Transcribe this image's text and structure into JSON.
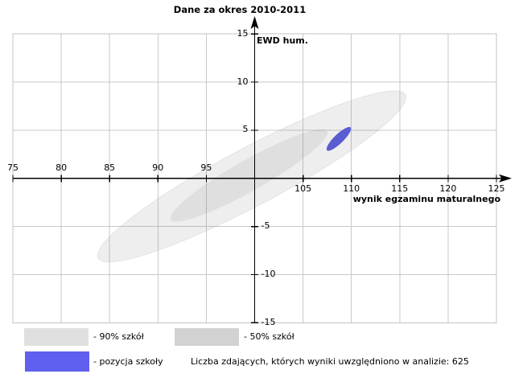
{
  "title": "Dane za okres 2010-2011",
  "footer_note": "Liczba zdających, których wyniki uwzględniono w analizie: 625",
  "legend": {
    "items": [
      {
        "id": "pct90",
        "label": "- 90% szkół",
        "swatch_color": "#e0e0e0"
      },
      {
        "id": "pct50",
        "label": "- 50% szkół",
        "swatch_color": "#d2d2d2"
      },
      {
        "id": "school",
        "label": "- pozycja szkoły",
        "swatch_color": "#5f5ff0"
      }
    ]
  },
  "colors": {
    "grid": "#c9c9c9",
    "plot_border": "#c3c3c3",
    "axis": "#000000",
    "school_ellipse": "#5b5bd2"
  },
  "chart_data": {
    "type": "scatter",
    "title": "Dane za okres 2010-2011",
    "xlabel": "wynik egzaminu maturalnego",
    "ylabel": "EWD hum.",
    "xlim": [
      75,
      125
    ],
    "ylim": [
      -15,
      15
    ],
    "grid": true,
    "grid_step": 5,
    "x_ticks_above_axis": [
      75,
      80,
      85,
      90,
      95
    ],
    "x_ticks_below_axis": [
      105,
      110,
      115,
      120,
      125
    ],
    "y_ticks_left_of_axis": [
      15,
      10,
      5
    ],
    "y_ticks_right_of_axis": [
      -5,
      -10,
      -15
    ],
    "ellipses": [
      {
        "name": "90% szkół",
        "cx": 99.7,
        "cy": 0.2,
        "semi_major": 18.0,
        "semi_minor": 3.0,
        "angle_deg": 28,
        "fill": "rgba(120,120,120,0.13)",
        "stroke": "rgba(110,110,110,0.12)"
      },
      {
        "name": "50% szkół",
        "cx": 99.4,
        "cy": 0.3,
        "semi_major": 9.3,
        "semi_minor": 1.6,
        "angle_deg": 29.5,
        "fill": "rgba(120,120,120,0.13)",
        "stroke": "none"
      },
      {
        "name": "pozycja szkoły",
        "cx": 108.7,
        "cy": 4.1,
        "semi_major": 1.7,
        "semi_minor": 0.48,
        "angle_deg": 44,
        "fill": "#5b5bd2",
        "stroke": "none"
      }
    ],
    "school_position": {
      "x": 108.7,
      "y": 4.1
    },
    "exam_takers_count": 625
  }
}
